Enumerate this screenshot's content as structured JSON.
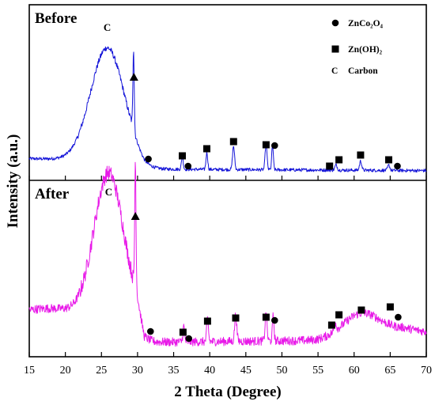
{
  "chart_data": {
    "type": "line",
    "xlabel": "2 Theta (Degree)",
    "ylabel": "Intensity (a.u.)",
    "xlim": [
      15,
      70
    ],
    "xticks": [
      "15",
      "20",
      "25",
      "30",
      "35",
      "40",
      "45",
      "50",
      "55",
      "60",
      "65",
      "70"
    ],
    "legend": {
      "placement": "top-right",
      "entries": [
        {
          "marker": "circle",
          "label": "ZnCo₂O₄"
        },
        {
          "marker": "square",
          "label": "Zn(OH)₂"
        },
        {
          "marker": "letter",
          "symbol": "C",
          "label": "Carbon"
        }
      ]
    },
    "panels": [
      {
        "label": "Before",
        "color": "#1414d8",
        "carbon_label": "C",
        "triangle_x": 29.5,
        "circles_x": [
          31.5,
          37.0,
          49.0,
          66.0
        ],
        "squares_x": [
          36.2,
          39.6,
          43.3,
          47.8,
          56.6,
          57.9,
          60.9,
          64.8
        ],
        "peaks": [
          {
            "x": 25.8,
            "h": 8.6,
            "w": 2.3
          },
          {
            "x": 29.45,
            "h": 6.2,
            "w": 0.09
          },
          {
            "x": 36.2,
            "h": 1.0,
            "w": 0.12
          },
          {
            "x": 39.6,
            "h": 1.3,
            "w": 0.12
          },
          {
            "x": 43.3,
            "h": 1.8,
            "w": 0.14
          },
          {
            "x": 47.8,
            "h": 2.0,
            "w": 0.13
          },
          {
            "x": 48.7,
            "h": 1.9,
            "w": 0.11
          },
          {
            "x": 57.5,
            "h": 0.4,
            "w": 0.15
          },
          {
            "x": 60.9,
            "h": 0.7,
            "w": 0.15
          },
          {
            "x": 64.8,
            "h": 0.4,
            "w": 0.15
          }
        ]
      },
      {
        "label": "After",
        "color": "#e81ae8",
        "carbon_label": "C",
        "triangle_x": 29.7,
        "circles_x": [
          31.8,
          37.1,
          49.0,
          66.1
        ],
        "squares_x": [
          36.3,
          39.7,
          43.6,
          47.8,
          56.9,
          57.9,
          61.0,
          65.0
        ],
        "peaks": [
          {
            "x": 26.0,
            "h": 7.0,
            "w": 2.0
          },
          {
            "x": 29.7,
            "h": 6.5,
            "w": 0.09
          },
          {
            "x": 36.4,
            "h": 0.8,
            "w": 0.12
          },
          {
            "x": 39.7,
            "h": 1.2,
            "w": 0.12
          },
          {
            "x": 43.6,
            "h": 1.4,
            "w": 0.14
          },
          {
            "x": 47.8,
            "h": 1.5,
            "w": 0.13
          },
          {
            "x": 48.8,
            "h": 1.3,
            "w": 0.11
          },
          {
            "x": 57.4,
            "h": 0.4,
            "w": 0.15
          },
          {
            "x": 61.0,
            "h": 1.1,
            "w": 2.5
          }
        ]
      }
    ]
  }
}
